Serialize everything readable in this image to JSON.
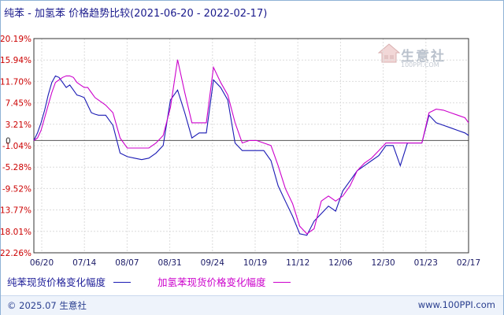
{
  "title": "纯苯 - 加氢苯 价格趋势比较(2021-06-20 - 2022-02-17)",
  "watermark": {
    "brand": "生意社",
    "url": "100PPI.COM"
  },
  "footer": {
    "copyright": "© 2025.07 生意社",
    "site": "www.100PPI.com"
  },
  "colors": {
    "series1": "#1a1ab4",
    "series2": "#cc00cc",
    "axis": "#333333",
    "grid": "#dcdcdc",
    "zero": "#555555",
    "ytick": "#cc0000"
  },
  "chart_data": {
    "type": "line",
    "title": "纯苯 - 加氢苯 价格趋势比较(2021-06-20 - 2022-02-17)",
    "xlabel": "",
    "ylabel": "",
    "x_tick_labels": [
      "06/20",
      "07/14",
      "08/07",
      "08/31",
      "09/24",
      "10/19",
      "11/12",
      "12/06",
      "12/30",
      "01/23",
      "02/17"
    ],
    "y_tick_labels": [
      "20.19%",
      "15.94%",
      "11.70%",
      "7.45%",
      "3.21%",
      "-1.04%",
      "-5.28%",
      "-9.52%",
      "-13.77%",
      "-18.01%",
      "-22.26%"
    ],
    "zero_label": "0",
    "ylim": [
      -22.26,
      20.19
    ],
    "xlim": [
      0,
      242
    ],
    "grid": true,
    "legend_position": "bottom",
    "series": [
      {
        "name": "纯苯现货价格变化幅度",
        "x": [
          0,
          2,
          4,
          6,
          8,
          10,
          12,
          14,
          16,
          18,
          20,
          22,
          24,
          26,
          28,
          30,
          32,
          34,
          36,
          38,
          40,
          44,
          48,
          52,
          56,
          60,
          64,
          68,
          72,
          76,
          80,
          84,
          88,
          92,
          96,
          100,
          104,
          108,
          112,
          116,
          120,
          124,
          128,
          132,
          136,
          140,
          144,
          148,
          152,
          156,
          160,
          164,
          168,
          172,
          176,
          180,
          184,
          188,
          192,
          196,
          200,
          204,
          208,
          212,
          216,
          220,
          224,
          228,
          232,
          236,
          240,
          242
        ],
        "values": [
          0.0,
          1.5,
          3.5,
          6.0,
          9.0,
          11.5,
          12.8,
          12.5,
          11.5,
          10.5,
          11.0,
          10.0,
          9.0,
          8.8,
          8.5,
          7.0,
          5.5,
          5.2,
          5.0,
          5.0,
          5.0,
          3.0,
          -2.5,
          -3.2,
          -3.5,
          -3.8,
          -3.5,
          -2.5,
          -1.0,
          8.0,
          10.0,
          5.5,
          0.5,
          1.5,
          1.5,
          12.0,
          10.5,
          8.0,
          -0.5,
          -2.0,
          -2.0,
          -2.0,
          -2.0,
          -4.0,
          -9.0,
          -12.0,
          -15.0,
          -18.5,
          -18.8,
          -16.0,
          -14.5,
          -13.0,
          -14.0,
          -10.0,
          -8.0,
          -6.0,
          -5.0,
          -4.0,
          -3.0,
          -1.0,
          -1.0,
          -5.0,
          -0.5,
          -0.5,
          -0.5,
          5.0,
          3.5,
          3.0,
          2.5,
          2.0,
          1.5,
          1.0
        ]
      },
      {
        "name": "加氢苯现货价格变化幅度",
        "x": [
          0,
          2,
          4,
          6,
          8,
          10,
          12,
          14,
          16,
          18,
          20,
          22,
          24,
          26,
          28,
          30,
          32,
          34,
          36,
          38,
          40,
          44,
          48,
          52,
          56,
          60,
          64,
          68,
          72,
          76,
          80,
          84,
          88,
          92,
          96,
          100,
          104,
          108,
          112,
          116,
          120,
          124,
          128,
          132,
          136,
          140,
          144,
          148,
          152,
          156,
          160,
          164,
          168,
          172,
          176,
          180,
          184,
          188,
          192,
          196,
          200,
          204,
          208,
          212,
          216,
          220,
          224,
          228,
          232,
          236,
          240,
          242
        ],
        "values": [
          0.0,
          0.5,
          2.0,
          4.5,
          7.0,
          9.5,
          11.5,
          12.0,
          12.5,
          12.8,
          12.8,
          12.5,
          11.5,
          11.0,
          10.5,
          10.5,
          9.5,
          8.5,
          8.0,
          7.5,
          7.0,
          5.5,
          0.5,
          -1.5,
          -1.5,
          -1.5,
          -1.5,
          -0.5,
          1.0,
          6.5,
          16.0,
          9.5,
          3.5,
          3.5,
          3.5,
          14.5,
          11.5,
          9.0,
          3.5,
          -0.5,
          0.0,
          0.0,
          -0.5,
          -1.0,
          -5.0,
          -9.5,
          -12.5,
          -17.0,
          -18.5,
          -17.5,
          -12.0,
          -11.0,
          -12.0,
          -11.0,
          -9.0,
          -6.0,
          -4.5,
          -3.5,
          -2.0,
          -0.5,
          -0.5,
          -0.5,
          -0.5,
          -0.5,
          -0.5,
          5.5,
          6.2,
          6.0,
          5.5,
          5.0,
          4.5,
          3.5
        ]
      }
    ]
  }
}
